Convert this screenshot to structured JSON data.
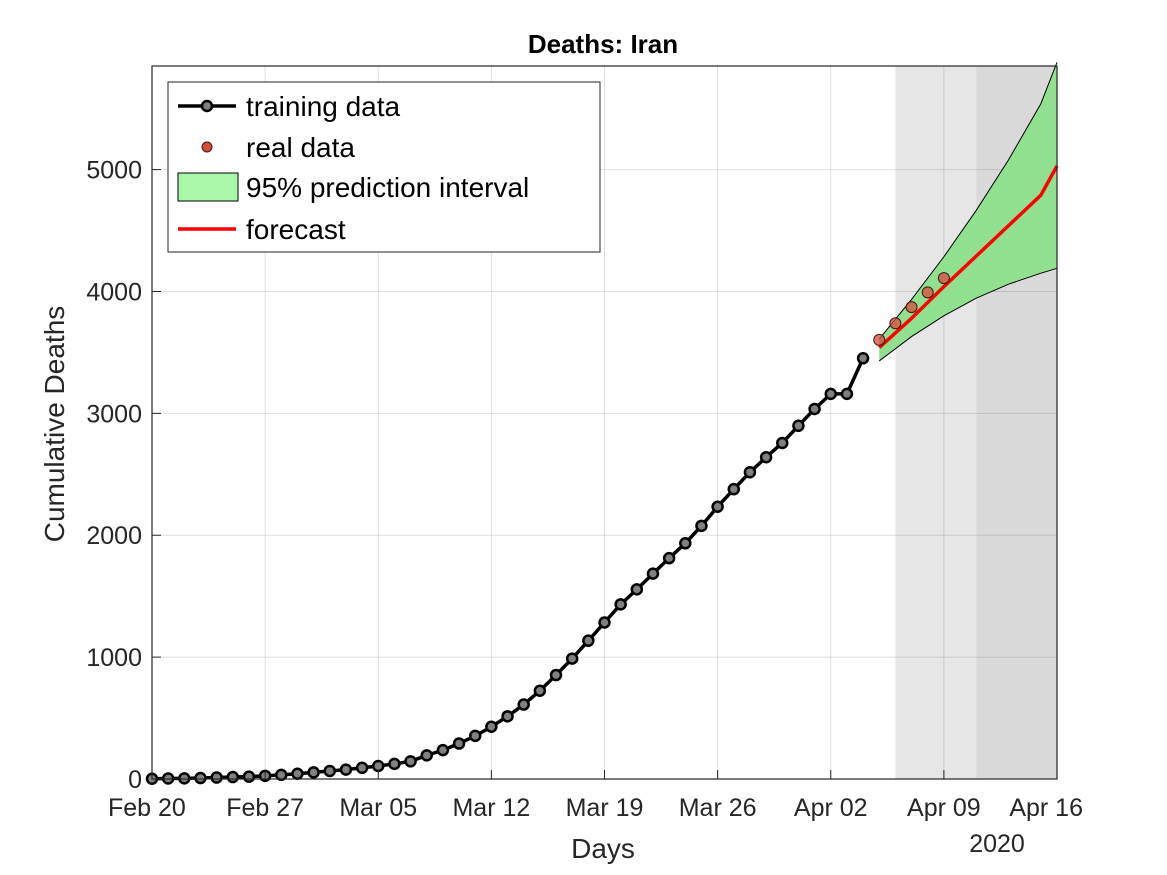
{
  "chart_data": {
    "type": "line",
    "title": "Deaths: Iran",
    "xlabel": "Days",
    "ylabel": "Cumulative Deaths",
    "year_label": "2020",
    "x_range": [
      "2020-02-20",
      "2020-04-16"
    ],
    "ylim": [
      0,
      5850
    ],
    "grid": true,
    "legend_position": "top-left",
    "x_ticks": [
      {
        "date": "2020-02-20",
        "label": "Feb 20"
      },
      {
        "date": "2020-02-27",
        "label": "Feb 27"
      },
      {
        "date": "2020-03-05",
        "label": "Mar 05"
      },
      {
        "date": "2020-03-12",
        "label": "Mar 12"
      },
      {
        "date": "2020-03-19",
        "label": "Mar 19"
      },
      {
        "date": "2020-03-26",
        "label": "Mar 26"
      },
      {
        "date": "2020-04-02",
        "label": "Apr 02"
      },
      {
        "date": "2020-04-09",
        "label": "Apr 09"
      },
      {
        "date": "2020-04-16",
        "label": "Apr 16"
      }
    ],
    "y_ticks": [
      {
        "value": 0,
        "label": "0"
      },
      {
        "value": 1000,
        "label": "1000"
      },
      {
        "value": 2000,
        "label": "2000"
      },
      {
        "value": 3000,
        "label": "3000"
      },
      {
        "value": 4000,
        "label": "4000"
      },
      {
        "value": 5000,
        "label": "5000"
      }
    ],
    "shaded_regions": [
      {
        "from": "2020-04-06",
        "to": "2020-04-11",
        "color": "#e6e6e6"
      },
      {
        "from": "2020-04-11",
        "to": "2020-04-16",
        "color": "#d9d9d9"
      }
    ],
    "legend": [
      {
        "key": "training",
        "label": "training data"
      },
      {
        "key": "real",
        "label": "real data"
      },
      {
        "key": "interval",
        "label": "95% prediction interval"
      },
      {
        "key": "forecast",
        "label": "forecast"
      }
    ],
    "series": [
      {
        "name": "training data",
        "color": "#000000",
        "marker_color": "#808080",
        "points": [
          [
            "2020-02-20",
            2
          ],
          [
            "2020-02-21",
            4
          ],
          [
            "2020-02-22",
            5
          ],
          [
            "2020-02-23",
            8
          ],
          [
            "2020-02-24",
            12
          ],
          [
            "2020-02-25",
            16
          ],
          [
            "2020-02-26",
            19
          ],
          [
            "2020-02-27",
            26
          ],
          [
            "2020-02-28",
            34
          ],
          [
            "2020-02-29",
            43
          ],
          [
            "2020-03-01",
            54
          ],
          [
            "2020-03-02",
            66
          ],
          [
            "2020-03-03",
            77
          ],
          [
            "2020-03-04",
            92
          ],
          [
            "2020-03-05",
            107
          ],
          [
            "2020-03-06",
            124
          ],
          [
            "2020-03-07",
            145
          ],
          [
            "2020-03-08",
            194
          ],
          [
            "2020-03-09",
            237
          ],
          [
            "2020-03-10",
            291
          ],
          [
            "2020-03-11",
            354
          ],
          [
            "2020-03-12",
            429
          ],
          [
            "2020-03-13",
            514
          ],
          [
            "2020-03-14",
            611
          ],
          [
            "2020-03-15",
            724
          ],
          [
            "2020-03-16",
            853
          ],
          [
            "2020-03-17",
            988
          ],
          [
            "2020-03-18",
            1135
          ],
          [
            "2020-03-19",
            1284
          ],
          [
            "2020-03-20",
            1433
          ],
          [
            "2020-03-21",
            1556
          ],
          [
            "2020-03-22",
            1685
          ],
          [
            "2020-03-23",
            1812
          ],
          [
            "2020-03-24",
            1934
          ],
          [
            "2020-03-25",
            2077
          ],
          [
            "2020-03-26",
            2234
          ],
          [
            "2020-03-27",
            2378
          ],
          [
            "2020-03-28",
            2517
          ],
          [
            "2020-03-29",
            2640
          ],
          [
            "2020-03-30",
            2757
          ],
          [
            "2020-03-31",
            2898
          ],
          [
            "2020-04-01",
            3036
          ],
          [
            "2020-04-02",
            3160
          ],
          [
            "2020-04-03",
            3160
          ],
          [
            "2020-04-04",
            3452
          ]
        ]
      },
      {
        "name": "real data",
        "color": "#d64b3c",
        "points": [
          [
            "2020-04-05",
            3603
          ],
          [
            "2020-04-06",
            3739
          ],
          [
            "2020-04-07",
            3872
          ],
          [
            "2020-04-08",
            3993
          ],
          [
            "2020-04-09",
            4110
          ]
        ]
      },
      {
        "name": "forecast",
        "color": "#ff0000",
        "points": [
          [
            "2020-04-05",
            3540
          ],
          [
            "2020-04-07",
            3780
          ],
          [
            "2020-04-09",
            4040
          ],
          [
            "2020-04-11",
            4290
          ],
          [
            "2020-04-13",
            4540
          ],
          [
            "2020-04-15",
            4790
          ],
          [
            "2020-04-16",
            5030
          ]
        ]
      },
      {
        "name": "95% prediction interval",
        "color": "#90e090",
        "upper": [
          [
            "2020-04-05",
            3610
          ],
          [
            "2020-04-07",
            3935
          ],
          [
            "2020-04-09",
            4285
          ],
          [
            "2020-04-11",
            4665
          ],
          [
            "2020-04-13",
            5080
          ],
          [
            "2020-04-15",
            5540
          ],
          [
            "2020-04-16",
            5880
          ]
        ],
        "lower": [
          [
            "2020-04-05",
            3430
          ],
          [
            "2020-04-07",
            3630
          ],
          [
            "2020-04-09",
            3800
          ],
          [
            "2020-04-11",
            3945
          ],
          [
            "2020-04-13",
            4060
          ],
          [
            "2020-04-15",
            4150
          ],
          [
            "2020-04-16",
            4190
          ]
        ]
      }
    ]
  }
}
